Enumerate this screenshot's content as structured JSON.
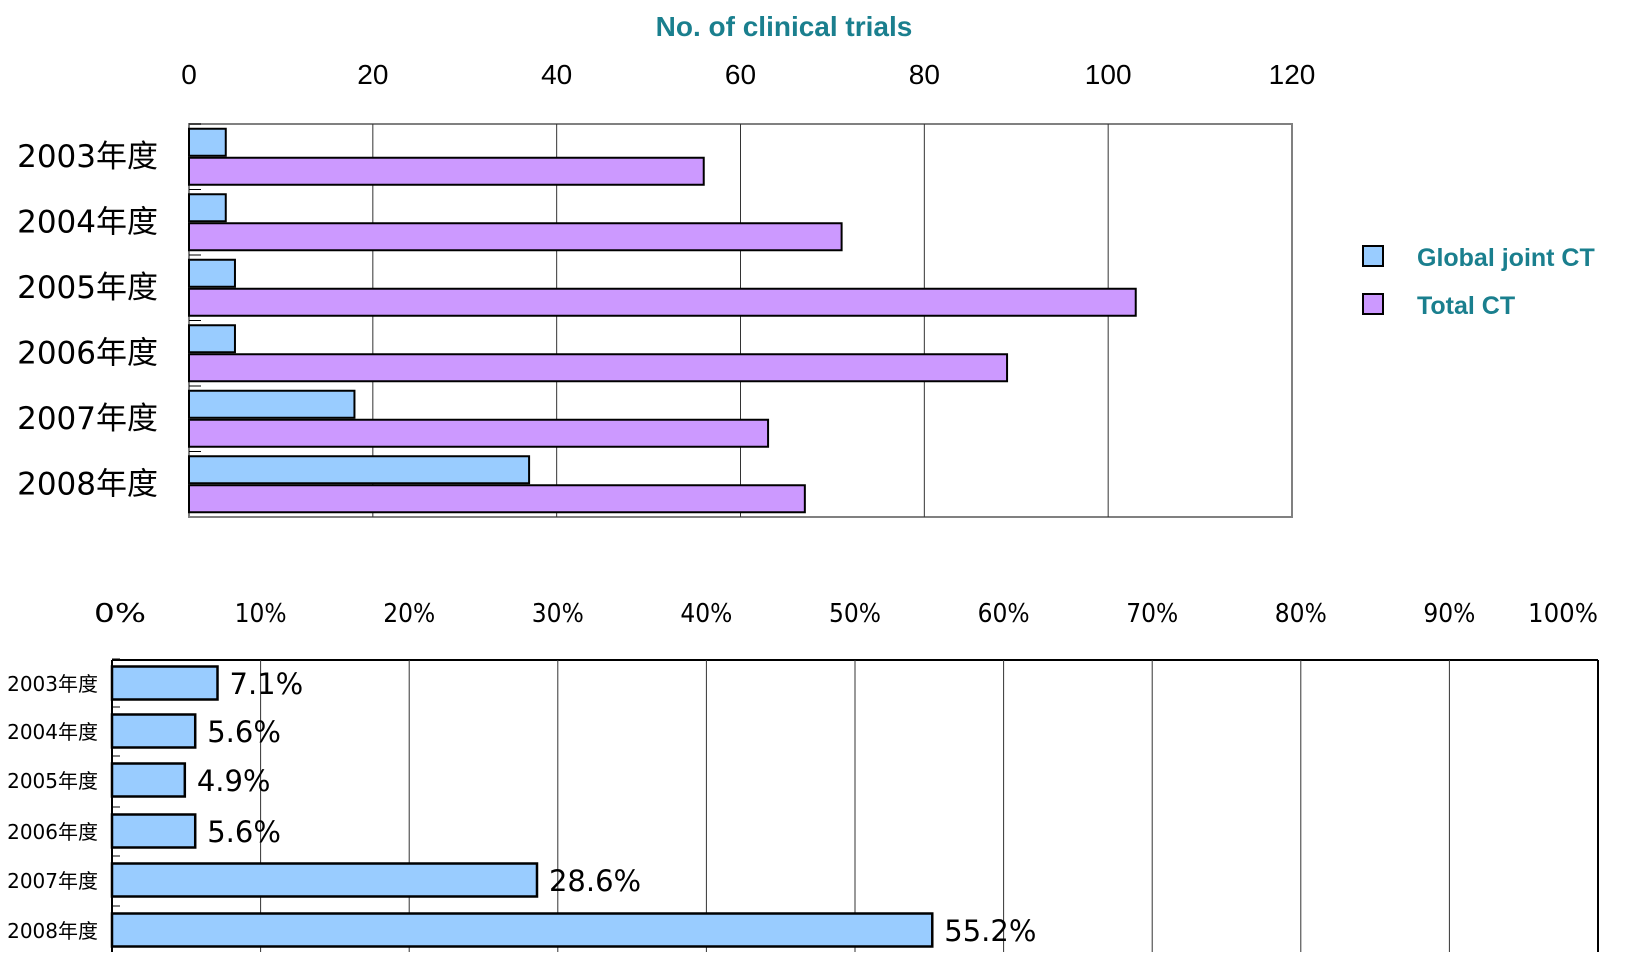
{
  "colors": {
    "global": "#99ccff",
    "total": "#cc99ff",
    "title": "#1a7f8e",
    "gridline": "#333333",
    "axis": "#808080"
  },
  "chart_data": [
    {
      "type": "bar",
      "orientation": "horizontal",
      "title": "No. of clinical trials",
      "xlabel": "",
      "ylabel": "",
      "categories": [
        "2003年度",
        "2004年度",
        "2005年度",
        "2006年度",
        "2007年度",
        "2008年度"
      ],
      "series": [
        {
          "name": "Global joint CT",
          "color": "#99ccff",
          "values": [
            4,
            4,
            5,
            5,
            18,
            37
          ]
        },
        {
          "name": "Total CT",
          "color": "#cc99ff",
          "values": [
            56,
            71,
            103,
            89,
            63,
            67
          ]
        }
      ],
      "xlim": [
        0,
        120
      ],
      "x_ticks": [
        "0",
        "20",
        "40",
        "60",
        "80",
        "100",
        "120"
      ],
      "grid": true,
      "legend_position": "right"
    },
    {
      "type": "bar",
      "orientation": "horizontal",
      "title": "",
      "xlabel": "",
      "ylabel": "",
      "categories": [
        "2003年度",
        "2004年度",
        "2005年度",
        "2006年度",
        "2007年度",
        "2008年度"
      ],
      "series": [
        {
          "color": "#99ccff",
          "values": [
            7.1,
            5.6,
            4.9,
            5.6,
            28.6,
            55.2
          ]
        }
      ],
      "data_labels": [
        "7.1%",
        "5.6%",
        "4.9%",
        "5.6%",
        "28.6%",
        "55.2%"
      ],
      "xlim": [
        0,
        100
      ],
      "x_ticks": [
        "0%",
        "10%",
        "20%",
        "30%",
        "40%",
        "50%",
        "60%",
        "70%",
        "80%",
        "90%",
        "100%"
      ],
      "grid": true
    }
  ]
}
